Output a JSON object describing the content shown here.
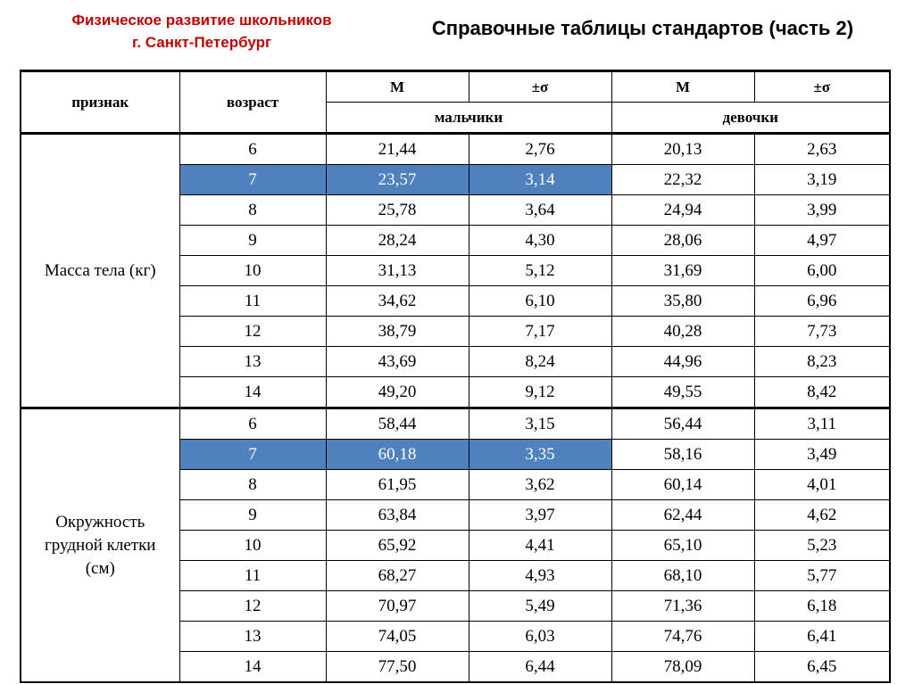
{
  "header": {
    "subtitle_line1": "Физическое развитие школьников",
    "subtitle_line2": "г. Санкт-Петербург",
    "title": "Справочные таблицы стандартов (часть 2)"
  },
  "table": {
    "col_feature": "признак",
    "col_age": "возраст",
    "col_mean": "М",
    "col_sigma": "±σ",
    "boys": "мальчики",
    "girls": "девочки",
    "groups": [
      {
        "label": "Масса тела (кг)",
        "rows": [
          {
            "age": "6",
            "boys_m": "21,44",
            "boys_s": "2,76",
            "girls_m": "20,13",
            "girls_s": "2,63"
          },
          {
            "age": "7",
            "boys_m": "23,57",
            "boys_s": "3,14",
            "girls_m": "22,32",
            "girls_s": "3,19"
          },
          {
            "age": "8",
            "boys_m": "25,78",
            "boys_s": "3,64",
            "girls_m": "24,94",
            "girls_s": "3,99"
          },
          {
            "age": "9",
            "boys_m": "28,24",
            "boys_s": "4,30",
            "girls_m": "28,06",
            "girls_s": "4,97"
          },
          {
            "age": "10",
            "boys_m": "31,13",
            "boys_s": "5,12",
            "girls_m": "31,69",
            "girls_s": "6,00"
          },
          {
            "age": "11",
            "boys_m": "34,62",
            "boys_s": "6,10",
            "girls_m": "35,80",
            "girls_s": "6,96"
          },
          {
            "age": "12",
            "boys_m": "38,79",
            "boys_s": "7,17",
            "girls_m": "40,28",
            "girls_s": "7,73"
          },
          {
            "age": "13",
            "boys_m": "43,69",
            "boys_s": "8,24",
            "girls_m": "44,96",
            "girls_s": "8,23"
          },
          {
            "age": "14",
            "boys_m": "49,20",
            "boys_s": "9,12",
            "girls_m": "49,55",
            "girls_s": "8,42"
          }
        ]
      },
      {
        "label_line1": "Окружность",
        "label_line2": "грудной клетки",
        "label_line3": "(см)",
        "rows": [
          {
            "age": "6",
            "boys_m": "58,44",
            "boys_s": "3,15",
            "girls_m": "56,44",
            "girls_s": "3,11"
          },
          {
            "age": "7",
            "boys_m": "60,18",
            "boys_s": "3,35",
            "girls_m": "58,16",
            "girls_s": "3,49"
          },
          {
            "age": "8",
            "boys_m": "61,95",
            "boys_s": "3,62",
            "girls_m": "60,14",
            "girls_s": "4,01"
          },
          {
            "age": "9",
            "boys_m": "63,84",
            "boys_s": "3,97",
            "girls_m": "62,44",
            "girls_s": "4,62"
          },
          {
            "age": "10",
            "boys_m": "65,92",
            "boys_s": "4,41",
            "girls_m": "65,10",
            "girls_s": "5,23"
          },
          {
            "age": "11",
            "boys_m": "68,27",
            "boys_s": "4,93",
            "girls_m": "68,10",
            "girls_s": "5,77"
          },
          {
            "age": "12",
            "boys_m": "70,97",
            "boys_s": "5,49",
            "girls_m": "71,36",
            "girls_s": "6,18"
          },
          {
            "age": "13",
            "boys_m": "74,05",
            "boys_s": "6,03",
            "girls_m": "74,76",
            "girls_s": "6,41"
          },
          {
            "age": "14",
            "boys_m": "77,50",
            "boys_s": "6,44",
            "girls_m": "78,09",
            "girls_s": "6,45"
          }
        ]
      }
    ]
  },
  "colors": {
    "highlight": "#4f81bd",
    "subtitle": "#c00000"
  }
}
